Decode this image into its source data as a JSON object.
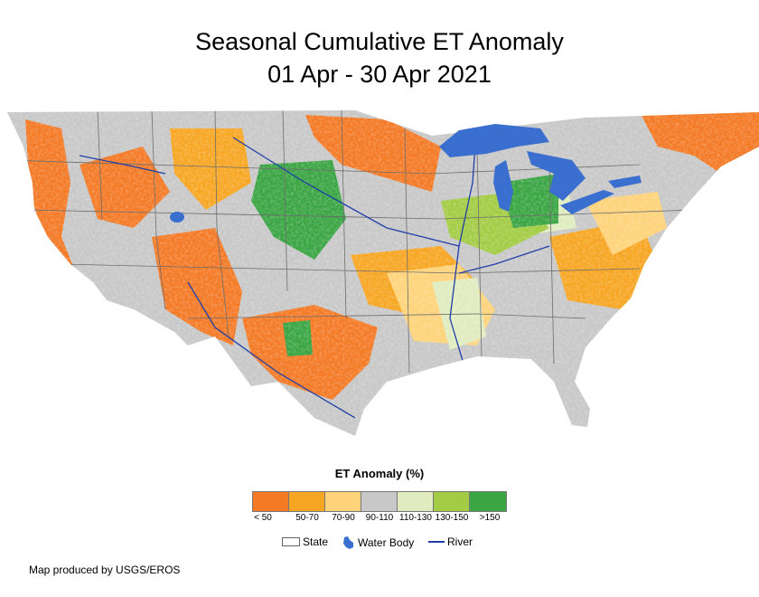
{
  "title": {
    "line1": "Seasonal Cumulative ET Anomaly",
    "line2": "01 Apr - 30 Apr 2021"
  },
  "legend": {
    "title": "ET Anomaly (%)",
    "classes": [
      {
        "label": "< 50",
        "color": "#f47a26"
      },
      {
        "label": "50-70",
        "color": "#f7a623"
      },
      {
        "label": "70-90",
        "color": "#ffd37a"
      },
      {
        "label": "90-110",
        "color": "#c8c8c8"
      },
      {
        "label": "110-130",
        "color": "#e0ecbf"
      },
      {
        "label": "130-150",
        "color": "#a3cc44"
      },
      {
        "label": ">150",
        "color": "#3aa543"
      }
    ]
  },
  "reference": {
    "state": "State",
    "water_body": "Water Body",
    "river": "River",
    "water_color": "#3a6fd0",
    "river_color": "#1f3fa8"
  },
  "credit": "Map produced by USGS/EROS"
}
